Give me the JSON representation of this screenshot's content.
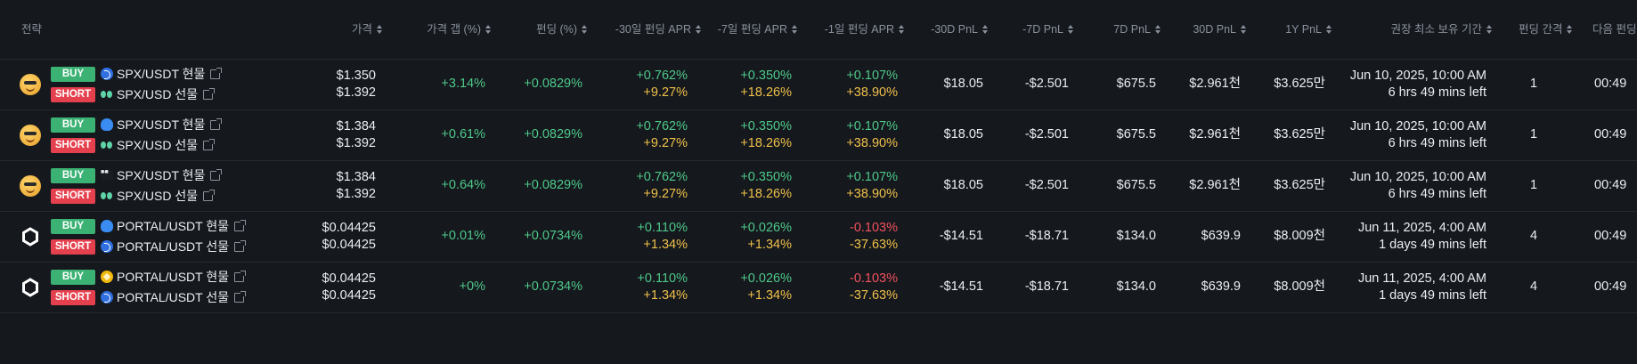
{
  "headers": {
    "strategy": "전략",
    "price": "가격",
    "price_gap": "가격 갭 (%)",
    "funding": "펀딩 (%)",
    "apr30": "-30일 펀딩 APR",
    "apr7": "-7일 펀딩 APR",
    "apr1": "-1일 펀딩 APR",
    "pnl30": "-30D PnL",
    "pnl7": "-7D PnL",
    "fpnl7": "7D PnL",
    "fpnl30": "30D PnL",
    "fpnl1y": "1Y PnL",
    "hold": "권장 최소 보유 기간",
    "interval": "펀딩 간격",
    "next": "다음 펀딩까"
  },
  "labels": {
    "buy": "BUY",
    "short": "SHORT"
  },
  "icons": {
    "ext_link": "external-link-icon",
    "sort": "sort-icon"
  },
  "rows": [
    {
      "coin": "spx-coin-icon",
      "buy_exchange": "upbit-icon",
      "buy_pair": "SPX/USDT 현물",
      "short_exchange": "hyperliquid-icon",
      "short_pair": "SPX/USD 선물",
      "price_buy": "$1.350",
      "price_short": "$1.392",
      "gap": "+3.14%",
      "funding": "+0.0829%",
      "apr30_a": "+0.762%",
      "apr30_b": "+9.27%",
      "apr7_a": "+0.350%",
      "apr7_b": "+18.26%",
      "apr1_a": "+0.107%",
      "apr1_b": "+38.90%",
      "apr1_neg": false,
      "pnl30": "$18.05",
      "pnl7": "-$2.501",
      "fpnl7": "$675.5",
      "fpnl30": "$2.961천",
      "fpnl1y": "$3.625만",
      "hold_date": "Jun 10, 2025, 10:00 AM",
      "hold_left": "6 hrs 49 mins left",
      "interval": "1",
      "next": "00:49"
    },
    {
      "coin": "spx-coin-icon",
      "buy_exchange": "cloud-exchange-icon",
      "buy_pair": "SPX/USDT 현물",
      "short_exchange": "hyperliquid-icon",
      "short_pair": "SPX/USD 선물",
      "price_buy": "$1.384",
      "price_short": "$1.392",
      "gap": "+0.61%",
      "funding": "+0.0829%",
      "apr30_a": "+0.762%",
      "apr30_b": "+9.27%",
      "apr7_a": "+0.350%",
      "apr7_b": "+18.26%",
      "apr1_a": "+0.107%",
      "apr1_b": "+38.90%",
      "apr1_neg": false,
      "pnl30": "$18.05",
      "pnl7": "-$2.501",
      "fpnl7": "$675.5",
      "fpnl30": "$2.961천",
      "fpnl1y": "$3.625만",
      "hold_date": "Jun 10, 2025, 10:00 AM",
      "hold_left": "6 hrs 49 mins left",
      "interval": "1",
      "next": "00:49"
    },
    {
      "coin": "spx-coin-icon",
      "buy_exchange": "okx-icon",
      "buy_pair": "SPX/USDT 현물",
      "short_exchange": "hyperliquid-icon",
      "short_pair": "SPX/USD 선물",
      "price_buy": "$1.384",
      "price_short": "$1.392",
      "gap": "+0.64%",
      "funding": "+0.0829%",
      "apr30_a": "+0.762%",
      "apr30_b": "+9.27%",
      "apr7_a": "+0.350%",
      "apr7_b": "+18.26%",
      "apr1_a": "+0.107%",
      "apr1_b": "+38.90%",
      "apr1_neg": false,
      "pnl30": "$18.05",
      "pnl7": "-$2.501",
      "fpnl7": "$675.5",
      "fpnl30": "$2.961천",
      "fpnl1y": "$3.625만",
      "hold_date": "Jun 10, 2025, 10:00 AM",
      "hold_left": "6 hrs 49 mins left",
      "interval": "1",
      "next": "00:49"
    },
    {
      "coin": "portal-coin-icon",
      "buy_exchange": "cloud-exchange-icon",
      "buy_pair": "PORTAL/USDT 현물",
      "short_exchange": "upbit-icon",
      "short_pair": "PORTAL/USDT 선물",
      "price_buy": "$0.04425",
      "price_short": "$0.04425",
      "gap": "+0.01%",
      "funding": "+0.0734%",
      "apr30_a": "+0.110%",
      "apr30_b": "+1.34%",
      "apr7_a": "+0.026%",
      "apr7_b": "+1.34%",
      "apr1_a": "-0.103%",
      "apr1_b": "-37.63%",
      "apr1_neg": true,
      "pnl30": "-$14.51",
      "pnl7": "-$18.71",
      "fpnl7": "$134.0",
      "fpnl30": "$639.9",
      "fpnl1y": "$8.009천",
      "hold_date": "Jun 11, 2025, 4:00 AM",
      "hold_left": "1 days 49 mins left",
      "interval": "4",
      "next": "00:49"
    },
    {
      "coin": "portal-coin-icon",
      "buy_exchange": "binance-icon",
      "buy_pair": "PORTAL/USDT 현물",
      "short_exchange": "upbit-icon",
      "short_pair": "PORTAL/USDT 선물",
      "price_buy": "$0.04425",
      "price_short": "$0.04425",
      "gap": "+0%",
      "funding": "+0.0734%",
      "apr30_a": "+0.110%",
      "apr30_b": "+1.34%",
      "apr7_a": "+0.026%",
      "apr7_b": "+1.34%",
      "apr1_a": "-0.103%",
      "apr1_b": "-37.63%",
      "apr1_neg": true,
      "pnl30": "-$14.51",
      "pnl7": "-$18.71",
      "fpnl7": "$134.0",
      "fpnl30": "$639.9",
      "fpnl1y": "$8.009천",
      "hold_date": "Jun 11, 2025, 4:00 AM",
      "hold_left": "1 days 49 mins left",
      "interval": "4",
      "next": "00:49"
    }
  ]
}
